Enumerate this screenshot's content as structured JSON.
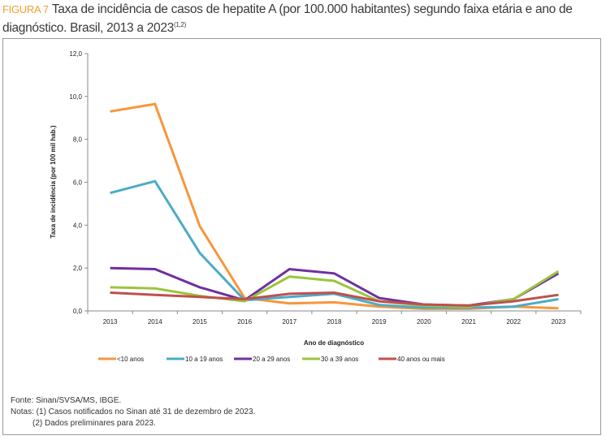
{
  "figure": {
    "label": "FIGURA 7",
    "title": "Taxa de incidência de casos de hepatite A (por 100.000 habitantes) segundo faixa etária e ano de diagnóstico. Brasil, 2013 a 2023",
    "title_superscript": "(1,2)"
  },
  "notes": {
    "source": "Fonte: Sinan/SVSA/MS, IBGE.",
    "note1": "Notas: (1) Casos notificados no Sinan até 31 de dezembro de 2023.",
    "note2": "(2) Dados preliminares para 2023."
  },
  "chart_data": {
    "type": "line",
    "title": "",
    "xlabel": "Ano de diagnóstico",
    "ylabel": "Taxa de incidência (por 100 mil hab.)",
    "x": [
      "2013",
      "2014",
      "2015",
      "2016",
      "2017",
      "2018",
      "2019",
      "2020",
      "2021",
      "2022",
      "2023"
    ],
    "ylim": [
      0,
      12
    ],
    "yticks": [
      "0,0",
      "2,0",
      "4,0",
      "6,0",
      "8,0",
      "10,0",
      "12,0"
    ],
    "ytick_values": [
      0,
      2,
      4,
      6,
      8,
      10,
      12
    ],
    "grid": false,
    "legend_position": "bottom",
    "series": [
      {
        "name": "<10 anos",
        "color": "#f7963c",
        "values": [
          9.3,
          9.65,
          3.95,
          0.6,
          0.35,
          0.4,
          0.2,
          0.1,
          0.1,
          0.2,
          0.12
        ]
      },
      {
        "name": "10 a 19 anos",
        "color": "#4bacc6",
        "values": [
          5.5,
          6.05,
          2.7,
          0.5,
          0.65,
          0.8,
          0.28,
          0.15,
          0.15,
          0.2,
          0.55
        ]
      },
      {
        "name": "20 a 29 anos",
        "color": "#7030a0",
        "values": [
          2.0,
          1.95,
          1.1,
          0.5,
          1.95,
          1.75,
          0.6,
          0.3,
          0.25,
          0.55,
          1.75
        ]
      },
      {
        "name": "30 a 39 anos",
        "color": "#9bc53d",
        "values": [
          1.1,
          1.05,
          0.7,
          0.45,
          1.6,
          1.4,
          0.45,
          0.25,
          0.2,
          0.55,
          1.85
        ]
      },
      {
        "name": "40 anos ou mais",
        "color": "#c0504d",
        "values": [
          0.85,
          0.75,
          0.65,
          0.55,
          0.8,
          0.85,
          0.45,
          0.3,
          0.25,
          0.45,
          0.75
        ]
      }
    ]
  }
}
